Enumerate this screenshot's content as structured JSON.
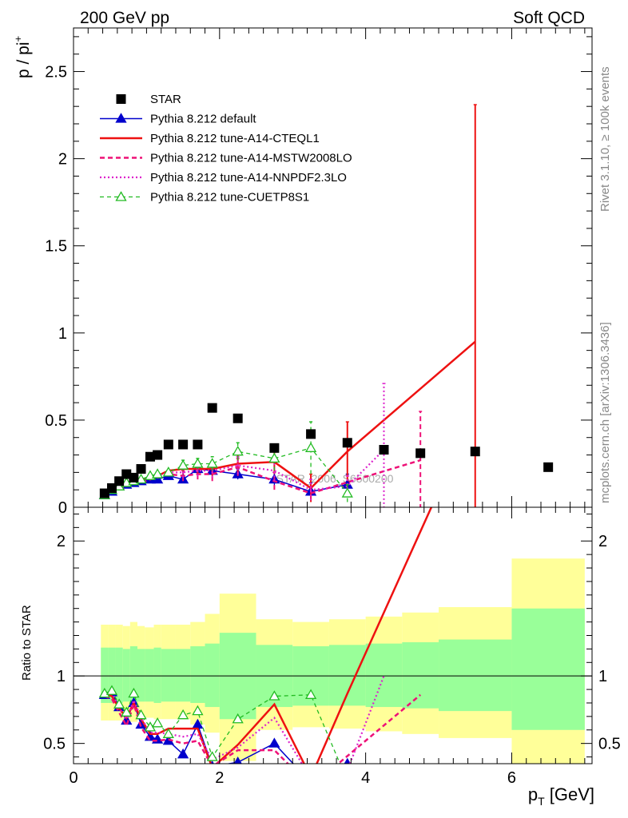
{
  "header": {
    "left": "200 GeV pp",
    "right": "Soft QCD"
  },
  "side_labels": {
    "top": "Rivet 3.1.10, ≥ 100k events",
    "bottom": "mcplots.cern.ch [arXiv:1306.3436]"
  },
  "watermark": "STAR_2006_S6500200",
  "colors": {
    "star": "#000000",
    "default": "#0000cc",
    "cteql1": "#ee1111",
    "mstw": "#ee1177",
    "nnpdf": "#dd22cc",
    "cuetp": "#22bb22",
    "band_inner": "#99ff99",
    "band_outer": "#ffff99"
  },
  "chart_data": [
    {
      "type": "scatter",
      "panel": "main",
      "ylabel_main": "p / pi",
      "ylabel_sup": "+",
      "xlim": [
        0,
        7.1
      ],
      "ylim": [
        0,
        2.75
      ],
      "yticks": [
        {
          "v": 0,
          "label": "0"
        },
        {
          "v": 0.5,
          "label": "0.5"
        },
        {
          "v": 1,
          "label": "1"
        },
        {
          "v": 1.5,
          "label": "1.5"
        },
        {
          "v": 2,
          "label": "2"
        },
        {
          "v": 2.5,
          "label": "2.5"
        }
      ],
      "legend": [
        {
          "label": "STAR",
          "key": "star"
        },
        {
          "label": "Pythia 8.212 default",
          "key": "default"
        },
        {
          "label": "Pythia 8.212 tune-A14-CTEQL1",
          "key": "cteql1"
        },
        {
          "label": "Pythia 8.212 tune-A14-MSTW2008LO",
          "key": "mstw"
        },
        {
          "label": "Pythia 8.212 tune-A14-NNPDF2.3LO",
          "key": "nnpdf"
        },
        {
          "label": "Pythia 8.212 tune-CUETP8S1",
          "key": "cuetp"
        }
      ],
      "star": {
        "x": [
          0.425,
          0.525,
          0.625,
          0.725,
          0.825,
          0.925,
          1.05,
          1.15,
          1.3,
          1.5,
          1.7,
          1.9,
          2.25,
          2.75,
          3.25,
          3.75,
          4.25,
          4.75,
          5.5,
          6.5
        ],
        "y": [
          0.08,
          0.11,
          0.15,
          0.19,
          0.17,
          0.22,
          0.29,
          0.3,
          0.36,
          0.36,
          0.36,
          0.57,
          0.51,
          0.34,
          0.42,
          0.37,
          0.33,
          0.31,
          0.32,
          0.23
        ]
      },
      "series": [
        {
          "key": "default",
          "x": [
            0.425,
            0.525,
            0.625,
            0.725,
            0.825,
            0.925,
            1.05,
            1.15,
            1.3,
            1.5,
            1.7,
            1.9,
            2.25,
            2.75,
            3.25,
            3.75
          ],
          "y": [
            0.07,
            0.09,
            0.12,
            0.13,
            0.14,
            0.15,
            0.16,
            0.16,
            0.18,
            0.16,
            0.22,
            0.21,
            0.19,
            0.16,
            0.09,
            0.13
          ],
          "err": [
            0.01,
            0.01,
            0.01,
            0.01,
            0.01,
            0.01,
            0.01,
            0.02,
            0.02,
            0.02,
            0.02,
            0.03,
            0.03,
            0.04,
            0.05,
            0.06
          ]
        },
        {
          "key": "cteql1",
          "x": [
            0.425,
            0.525,
            0.625,
            0.725,
            0.825,
            0.925,
            1.05,
            1.15,
            1.3,
            1.5,
            1.7,
            1.9,
            2.25,
            2.75,
            3.25,
            3.75,
            5.5
          ],
          "y": [
            0.07,
            0.09,
            0.12,
            0.14,
            0.15,
            0.16,
            0.17,
            0.18,
            0.21,
            0.22,
            0.22,
            0.22,
            0.25,
            0.26,
            0.11,
            0.32,
            0.95
          ],
          "err": [
            0.01,
            0.01,
            0.01,
            0.01,
            0.01,
            0.01,
            0.02,
            0.02,
            0.02,
            0.03,
            0.03,
            0.04,
            0.06,
            0.07,
            0.08,
            0.17,
            1.36
          ]
        },
        {
          "key": "mstw",
          "x": [
            0.425,
            0.525,
            0.625,
            0.725,
            0.825,
            0.925,
            1.05,
            1.15,
            1.3,
            1.5,
            1.7,
            1.9,
            2.25,
            2.75,
            3.25,
            4.75
          ],
          "y": [
            0.07,
            0.09,
            0.11,
            0.12,
            0.14,
            0.14,
            0.16,
            0.17,
            0.19,
            0.18,
            0.19,
            0.19,
            0.23,
            0.15,
            0.08,
            0.27
          ],
          "err": [
            0.01,
            0.01,
            0.01,
            0.01,
            0.01,
            0.01,
            0.02,
            0.02,
            0.02,
            0.03,
            0.03,
            0.04,
            0.05,
            0.05,
            0.04,
            0.28
          ]
        },
        {
          "key": "nnpdf",
          "x": [
            0.425,
            0.525,
            0.625,
            0.725,
            0.825,
            0.925,
            1.05,
            1.15,
            1.3,
            1.5,
            1.7,
            1.9,
            2.25,
            2.75,
            3.25,
            3.75,
            4.25
          ],
          "y": [
            0.07,
            0.1,
            0.12,
            0.13,
            0.15,
            0.16,
            0.17,
            0.18,
            0.2,
            0.2,
            0.21,
            0.21,
            0.24,
            0.21,
            0.1,
            0.12,
            0.33
          ],
          "err": [
            0.01,
            0.01,
            0.01,
            0.01,
            0.01,
            0.01,
            0.02,
            0.02,
            0.02,
            0.03,
            0.03,
            0.04,
            0.05,
            0.06,
            0.06,
            0.06,
            0.38
          ]
        },
        {
          "key": "cuetp",
          "x": [
            0.425,
            0.525,
            0.625,
            0.725,
            0.825,
            0.925,
            1.05,
            1.15,
            1.3,
            1.5,
            1.7,
            1.9,
            2.25,
            2.75,
            3.25,
            3.75
          ],
          "y": [
            0.07,
            0.1,
            0.12,
            0.14,
            0.15,
            0.16,
            0.18,
            0.19,
            0.2,
            0.24,
            0.25,
            0.25,
            0.32,
            0.28,
            0.34,
            0.08
          ],
          "err": [
            0.01,
            0.01,
            0.01,
            0.01,
            0.01,
            0.01,
            0.02,
            0.02,
            0.02,
            0.03,
            0.03,
            0.04,
            0.05,
            0.07,
            0.15,
            0.05
          ]
        }
      ]
    },
    {
      "type": "line",
      "panel": "ratio",
      "ylabel": "Ratio to STAR",
      "xlabel_main": "p",
      "xlabel_sub": "T",
      "xlabel_unit": " [GeV]",
      "xlim": [
        0,
        7.1
      ],
      "ylim": [
        0.35,
        2.25
      ],
      "xticks": [
        {
          "v": 0,
          "label": "0"
        },
        {
          "v": 2,
          "label": "2"
        },
        {
          "v": 4,
          "label": "4"
        },
        {
          "v": 6,
          "label": "6"
        }
      ],
      "yticks": [
        {
          "v": 0.5,
          "label": "0.5"
        },
        {
          "v": 1,
          "label": "1"
        },
        {
          "v": 2,
          "label": "2"
        }
      ],
      "bands": [
        {
          "x0": 0.375,
          "x1": 0.475,
          "o_lo": 0.67,
          "o_hi": 1.38,
          "i_lo": 0.8,
          "i_hi": 1.21
        },
        {
          "x0": 0.475,
          "x1": 0.575,
          "o_lo": 0.67,
          "o_hi": 1.38,
          "i_lo": 0.8,
          "i_hi": 1.21
        },
        {
          "x0": 0.575,
          "x1": 0.675,
          "o_lo": 0.67,
          "o_hi": 1.38,
          "i_lo": 0.8,
          "i_hi": 1.21
        },
        {
          "x0": 0.675,
          "x1": 0.775,
          "o_lo": 0.68,
          "o_hi": 1.37,
          "i_lo": 0.81,
          "i_hi": 1.2
        },
        {
          "x0": 0.775,
          "x1": 0.875,
          "o_lo": 0.66,
          "o_hi": 1.4,
          "i_lo": 0.8,
          "i_hi": 1.22
        },
        {
          "x0": 0.875,
          "x1": 0.975,
          "o_lo": 0.68,
          "o_hi": 1.37,
          "i_lo": 0.81,
          "i_hi": 1.2
        },
        {
          "x0": 0.975,
          "x1": 1.1,
          "o_lo": 0.69,
          "o_hi": 1.36,
          "i_lo": 0.81,
          "i_hi": 1.2
        },
        {
          "x0": 1.1,
          "x1": 1.2,
          "o_lo": 0.68,
          "o_hi": 1.38,
          "i_lo": 0.8,
          "i_hi": 1.21
        },
        {
          "x0": 1.2,
          "x1": 1.4,
          "o_lo": 0.68,
          "o_hi": 1.38,
          "i_lo": 0.81,
          "i_hi": 1.2
        },
        {
          "x0": 1.4,
          "x1": 1.6,
          "o_lo": 0.68,
          "o_hi": 1.38,
          "i_lo": 0.81,
          "i_hi": 1.2
        },
        {
          "x0": 1.6,
          "x1": 1.8,
          "o_lo": 0.64,
          "o_hi": 1.4,
          "i_lo": 0.8,
          "i_hi": 1.22
        },
        {
          "x0": 1.8,
          "x1": 2.0,
          "o_lo": 0.58,
          "o_hi": 1.46,
          "i_lo": 0.77,
          "i_hi": 1.24
        },
        {
          "x0": 2.0,
          "x1": 2.5,
          "o_lo": 0.37,
          "o_hi": 1.61,
          "i_lo": 0.68,
          "i_hi": 1.32
        },
        {
          "x0": 2.5,
          "x1": 3.0,
          "o_lo": 0.6,
          "o_hi": 1.42,
          "i_lo": 0.77,
          "i_hi": 1.23
        },
        {
          "x0": 3.0,
          "x1": 3.5,
          "o_lo": 0.62,
          "o_hi": 1.4,
          "i_lo": 0.78,
          "i_hi": 1.22
        },
        {
          "x0": 3.5,
          "x1": 4.0,
          "o_lo": 0.61,
          "o_hi": 1.42,
          "i_lo": 0.78,
          "i_hi": 1.23
        },
        {
          "x0": 4.0,
          "x1": 4.5,
          "o_lo": 0.59,
          "o_hi": 1.44,
          "i_lo": 0.77,
          "i_hi": 1.24
        },
        {
          "x0": 4.5,
          "x1": 5.0,
          "o_lo": 0.57,
          "o_hi": 1.47,
          "i_lo": 0.76,
          "i_hi": 1.25
        },
        {
          "x0": 5.0,
          "x1": 6.0,
          "o_lo": 0.54,
          "o_hi": 1.51,
          "i_lo": 0.74,
          "i_hi": 1.27
        },
        {
          "x0": 6.0,
          "x1": 7.0,
          "o_lo": 0.35,
          "o_hi": 1.87,
          "i_lo": 0.6,
          "i_hi": 1.5
        }
      ],
      "series": [
        {
          "key": "default",
          "x": [
            0.425,
            0.525,
            0.625,
            0.725,
            0.825,
            0.925,
            1.05,
            1.15,
            1.3,
            1.5,
            1.7,
            1.9,
            2.25,
            2.75,
            3.25,
            3.75
          ],
          "y": [
            0.86,
            0.88,
            0.77,
            0.67,
            0.8,
            0.64,
            0.55,
            0.53,
            0.52,
            0.42,
            0.64,
            0.33,
            0.36,
            0.5,
            0.21,
            0.35
          ]
        },
        {
          "key": "cteql1",
          "x": [
            0.425,
            0.525,
            0.625,
            0.725,
            0.825,
            0.925,
            1.05,
            1.15,
            1.3,
            1.5,
            1.7,
            1.9,
            2.25,
            2.75,
            3.25,
            3.75,
            5.5
          ],
          "y": [
            0.87,
            0.85,
            0.76,
            0.69,
            0.8,
            0.68,
            0.57,
            0.57,
            0.61,
            0.61,
            0.61,
            0.32,
            0.49,
            0.79,
            0.25,
            0.87,
            2.97
          ]
        },
        {
          "key": "mstw",
          "x": [
            0.425,
            0.525,
            0.625,
            0.725,
            0.825,
            0.925,
            1.05,
            1.15,
            1.3,
            1.5,
            1.7,
            1.9,
            2.25,
            2.75,
            3.25,
            4.75
          ],
          "y": [
            0.85,
            0.83,
            0.73,
            0.63,
            0.79,
            0.62,
            0.52,
            0.52,
            0.53,
            0.5,
            0.52,
            0.33,
            0.45,
            0.45,
            0.18,
            0.86
          ]
        },
        {
          "key": "nnpdf",
          "x": [
            0.425,
            0.525,
            0.625,
            0.725,
            0.825,
            0.925,
            1.05,
            1.15,
            1.3,
            1.5,
            1.7,
            1.9,
            2.25,
            2.75,
            3.25,
            3.75,
            4.25
          ],
          "y": [
            0.86,
            0.88,
            0.76,
            0.68,
            0.82,
            0.69,
            0.58,
            0.58,
            0.57,
            0.55,
            0.57,
            0.38,
            0.47,
            0.69,
            0.24,
            0.3,
            1.0
          ]
        },
        {
          "key": "cuetp",
          "x": [
            0.425,
            0.525,
            0.625,
            0.725,
            0.825,
            0.925,
            1.05,
            1.15,
            1.3,
            1.5,
            1.7,
            1.9,
            2.25,
            2.75,
            3.25,
            3.75
          ],
          "y": [
            0.87,
            0.89,
            0.79,
            0.73,
            0.87,
            0.71,
            0.62,
            0.65,
            0.57,
            0.71,
            0.74,
            0.4,
            0.68,
            0.85,
            0.86,
            0.22
          ]
        }
      ]
    }
  ]
}
